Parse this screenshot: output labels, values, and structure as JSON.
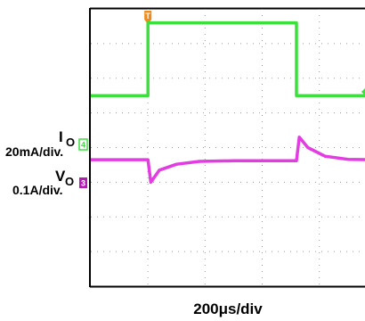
{
  "chart_data": {
    "type": "line",
    "title": "",
    "xlabel": "200μs/div",
    "xlim": [
      0,
      10
    ],
    "ylim": [
      0,
      8
    ],
    "grid": true,
    "trigger_marker": {
      "label": "T",
      "x": 1,
      "color": "#f08a1a"
    },
    "channels": [
      {
        "id": "io",
        "label_main": "I",
        "label_sub": "O",
        "scale_text": "20mA/div.",
        "marker_digit": "4",
        "color": "#3ce03c",
        "points": [
          [
            0,
            5.5
          ],
          [
            1.0,
            5.5
          ],
          [
            1.0,
            7.6
          ],
          [
            3.6,
            7.6
          ],
          [
            3.6,
            5.5
          ],
          [
            5.0,
            5.5
          ]
        ]
      },
      {
        "id": "vo",
        "label_main": "V",
        "label_sub": "O",
        "scale_text": "0.1A/div.",
        "marker_digit": "3",
        "color": "#e23ce2",
        "points": [
          [
            0,
            3.65
          ],
          [
            1.0,
            3.65
          ],
          [
            1.05,
            3.0
          ],
          [
            1.2,
            3.35
          ],
          [
            1.5,
            3.52
          ],
          [
            1.9,
            3.6
          ],
          [
            2.5,
            3.62
          ],
          [
            3.6,
            3.62
          ],
          [
            3.65,
            4.3
          ],
          [
            3.8,
            4.0
          ],
          [
            4.1,
            3.75
          ],
          [
            4.5,
            3.66
          ],
          [
            5.0,
            3.65
          ]
        ]
      }
    ]
  }
}
